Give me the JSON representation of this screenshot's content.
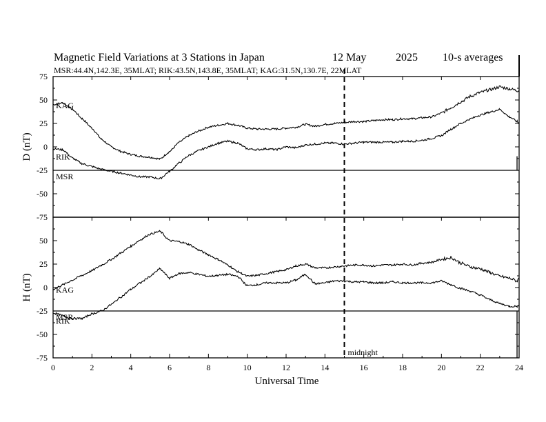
{
  "chart_data": {
    "type": "line",
    "title": "Magnetic Field Variations at 3 Stations in Japan",
    "date": "12 May",
    "year": "2025",
    "averaging": "10-s averages",
    "stations_line": "MSR:44.4N,142.3E, 35MLAT;  RIK:43.5N,143.8E, 35MLAT;  KAG:31.5N,130.7E, 22MLAT",
    "xlabel": "Universal Time",
    "xlim": [
      0,
      24
    ],
    "xticks": [
      "0",
      "2",
      "4",
      "6",
      "8",
      "10",
      "12",
      "14",
      "16",
      "18",
      "20",
      "22",
      "24"
    ],
    "midnight": {
      "x": 15,
      "label": "midnight"
    },
    "panels": [
      {
        "ylabel": "D (nT)",
        "ylim": [
          -75,
          75
        ],
        "yticks": [
          "75",
          "50",
          "25",
          "0",
          "-25",
          "-50",
          "-75"
        ],
        "series": [
          {
            "name": "KAG",
            "x": [
              0,
              0.5,
              1,
              1.5,
              2,
              2.5,
              3,
              3.5,
              4,
              4.5,
              5,
              5.5,
              6,
              6.5,
              7,
              7.5,
              8,
              8.5,
              9,
              9.5,
              10,
              10.5,
              11,
              11.5,
              12,
              12.5,
              13,
              13.5,
              14,
              14.5,
              15,
              15.5,
              16,
              16.5,
              17,
              17.5,
              18,
              18.5,
              19,
              19.5,
              20,
              20.5,
              21,
              21.5,
              22,
              22.5,
              23,
              23.5,
              23.9,
              24
            ],
            "values": [
              45,
              47,
              40,
              30,
              20,
              8,
              0,
              -5,
              -8,
              -10,
              -11,
              -13,
              -5,
              5,
              12,
              17,
              21,
              23,
              25,
              23,
              20,
              19,
              19,
              19,
              20,
              21,
              24,
              22,
              24,
              25,
              26,
              27,
              27,
              28,
              29,
              29,
              30,
              30,
              31,
              32,
              36,
              42,
              48,
              54,
              58,
              61,
              64,
              62,
              60,
              60
            ]
          },
          {
            "name": "RIK",
            "x": [
              0,
              0.5,
              1,
              1.5,
              2,
              2.5,
              3,
              3.5,
              4,
              4.5,
              5,
              5.5,
              6,
              6.5,
              7,
              7.5,
              8,
              8.5,
              9,
              9.5,
              10,
              10.5,
              11,
              11.5,
              12,
              12.5,
              13,
              13.5,
              14,
              14.5,
              15,
              15.5,
              16,
              16.5,
              17,
              17.5,
              18,
              18.5,
              19,
              19.5,
              20,
              20.5,
              21,
              21.5,
              22,
              22.5,
              23,
              23.5,
              23.9,
              24
            ],
            "values": [
              -2,
              -3,
              -12,
              -18,
              -21,
              -24,
              -26,
              -28,
              -30,
              -32,
              -32,
              -34,
              -26,
              -17,
              -9,
              -4,
              0,
              4,
              6,
              4,
              -2,
              -3,
              -2,
              -3,
              0,
              -1,
              2,
              3,
              4,
              4,
              3,
              4,
              5,
              5,
              5,
              5,
              6,
              6,
              7,
              9,
              12,
              19,
              25,
              30,
              34,
              37,
              40,
              32,
              27,
              25
            ]
          }
        ],
        "reference": {
          "name": "MSR",
          "value": -25
        }
      },
      {
        "ylabel": "H (nT)",
        "ylim": [
          -75,
          75
        ],
        "yticks": [
          "75",
          "50",
          "25",
          "0",
          "-25",
          "-50",
          "-75"
        ],
        "series": [
          {
            "name": "KAG",
            "x": [
              0,
              0.5,
              1,
              1.5,
              2,
              2.5,
              3,
              3.5,
              4,
              4.5,
              5,
              5.5,
              6,
              6.5,
              7,
              7.5,
              8,
              8.5,
              9,
              9.5,
              10,
              10.5,
              11,
              11.5,
              12,
              12.5,
              13,
              13.5,
              14,
              14.5,
              15,
              15.5,
              16,
              16.5,
              17,
              17.5,
              18,
              18.5,
              19,
              19.5,
              20,
              20.5,
              21,
              21.5,
              22,
              22.5,
              23,
              23.5,
              23.9,
              24
            ],
            "values": [
              -2,
              3,
              8,
              13,
              18,
              24,
              30,
              37,
              44,
              51,
              57,
              60,
              50,
              49,
              46,
              40,
              35,
              30,
              24,
              17,
              12,
              13,
              15,
              17,
              19,
              23,
              25,
              21,
              21,
              22,
              23,
              24,
              24,
              23,
              24,
              24,
              25,
              24,
              26,
              27,
              30,
              32,
              26,
              22,
              20,
              16,
              12,
              10,
              7,
              10
            ]
          },
          {
            "name": "RIK",
            "x": [
              0,
              0.5,
              1,
              1.5,
              2,
              2.5,
              3,
              3.5,
              4,
              4.5,
              5,
              5.5,
              6,
              6.5,
              7,
              7.5,
              8,
              8.5,
              9,
              9.5,
              10,
              10.5,
              11,
              11.5,
              12,
              12.5,
              13,
              13.5,
              14,
              14.5,
              15,
              15.5,
              16,
              16.5,
              17,
              17.5,
              18,
              18.5,
              19,
              19.5,
              20,
              20.5,
              21,
              21.5,
              22,
              22.5,
              23,
              23.5,
              23.9,
              24
            ],
            "values": [
              -27,
              -30,
              -33,
              -33,
              -28,
              -25,
              -18,
              -10,
              -2,
              5,
              12,
              20,
              10,
              15,
              16,
              14,
              12,
              13,
              14,
              12,
              2,
              3,
              5,
              5,
              5,
              8,
              14,
              4,
              5,
              7,
              7,
              6,
              6,
              5,
              5,
              6,
              5,
              5,
              5,
              5,
              7,
              3,
              -1,
              -4,
              -8,
              -13,
              -17,
              -20,
              -20,
              -20
            ]
          }
        ],
        "reference": {
          "name": "MSR",
          "value": -25
        }
      }
    ]
  }
}
